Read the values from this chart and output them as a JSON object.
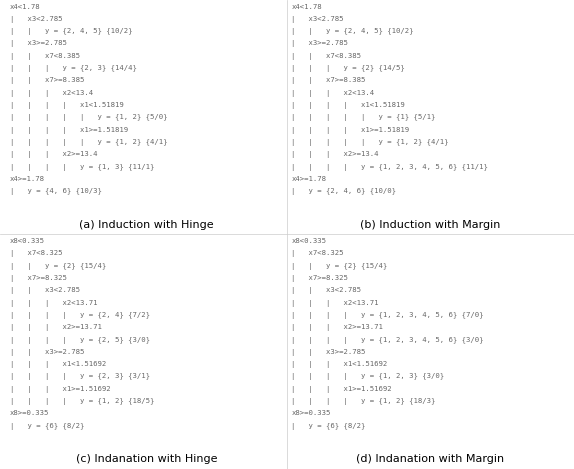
{
  "panel_a_title": "(a) Induction with Hinge",
  "panel_b_title": "(b) Induction with Margin",
  "panel_c_title": "(c) Indanation with Hinge",
  "panel_d_title": "(d) Indanation with Margin",
  "panel_a_lines": [
    "x4<1.78",
    "|   x3<2.785",
    "|   |   y = {2, 4, 5} {10/2}",
    "|   x3>=2.785",
    "|   |   x7<8.385",
    "|   |   |   y = {2, 3} {14/4}",
    "|   |   x7>=8.385",
    "|   |   |   x2<13.4",
    "|   |   |   |   x1<1.51819",
    "|   |   |   |   |   y = {1, 2} {5/0}",
    "|   |   |   |   x1>=1.51819",
    "|   |   |   |   |   y = {1, 2} {4/1}",
    "|   |   |   x2>=13.4",
    "|   |   |   |   y = {1, 3} {11/1}",
    "x4>=1.78",
    "|   y = {4, 6} {10/3}"
  ],
  "panel_b_lines": [
    "x4<1.78",
    "|   x3<2.785",
    "|   |   y = {2, 4, 5} {10/2}",
    "|   x3>=2.785",
    "|   |   x7<8.385",
    "|   |   |   y = {2} {14/5}",
    "|   |   x7>=8.385",
    "|   |   |   x2<13.4",
    "|   |   |   |   x1<1.51819",
    "|   |   |   |   |   y = {1} {5/1}",
    "|   |   |   |   x1>=1.51819",
    "|   |   |   |   |   y = {1, 2} {4/1}",
    "|   |   |   x2>=13.4",
    "|   |   |   |   y = {1, 2, 3, 4, 5, 6} {11/1}",
    "x4>=1.78",
    "|   y = {2, 4, 6} {10/0}"
  ],
  "panel_c_lines": [
    "x8<0.335",
    "|   x7<8.325",
    "|   |   y = {2} {15/4}",
    "|   x7>=8.325",
    "|   |   x3<2.785",
    "|   |   |   x2<13.71",
    "|   |   |   |   y = {2, 4} {7/2}",
    "|   |   |   x2>=13.71",
    "|   |   |   |   y = {2, 5} {3/0}",
    "|   |   x3>=2.785",
    "|   |   |   x1<1.51692",
    "|   |   |   |   y = {2, 3} {3/1}",
    "|   |   |   x1>=1.51692",
    "|   |   |   |   y = {1, 2} {18/5}",
    "x8>=0.335",
    "|   y = {6} {8/2}"
  ],
  "panel_d_lines": [
    "x8<0.335",
    "|   x7<8.325",
    "|   |   y = {2} {15/4}",
    "|   x7>=8.325",
    "|   |   x3<2.785",
    "|   |   |   x2<13.71",
    "|   |   |   |   y = {1, 2, 3, 4, 5, 6} {7/0}",
    "|   |   |   x2>=13.71",
    "|   |   |   |   y = {1, 2, 3, 4, 5, 6} {3/0}",
    "|   |   x3>=2.785",
    "|   |   |   x1<1.51692",
    "|   |   |   |   y = {1, 2, 3} {3/0}",
    "|   |   |   x1>=1.51692",
    "|   |   |   |   y = {1, 2} {18/3}",
    "x8>=0.335",
    "|   y = {6} {8/2}"
  ],
  "panel_b_bold_line_idx": 13,
  "panel_b_bold_numbers": [
    "2",
    "3",
    "4",
    "5"
  ],
  "panel_d_bold": {
    "6": [
      "1",
      "2",
      "3",
      "4",
      "5"
    ],
    "8": [
      "1",
      "2",
      "3",
      "4",
      "5"
    ],
    "11": [
      "1",
      "2"
    ],
    "13": [
      "1",
      "2"
    ]
  },
  "font_size": 5.2,
  "title_font_size": 8.0,
  "text_color": "#666666",
  "bg_color": "#ffffff"
}
